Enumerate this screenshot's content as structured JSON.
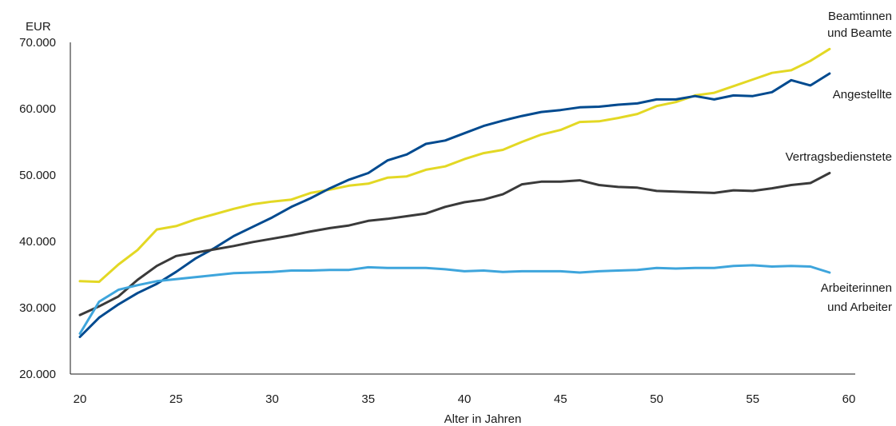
{
  "chart_data": {
    "type": "line",
    "xlabel": "Alter in Jahren",
    "ylabel": "EUR",
    "xlim": [
      20,
      60
    ],
    "ylim": [
      20000,
      70000
    ],
    "x_ticks": [
      "20",
      "25",
      "30",
      "35",
      "40",
      "45",
      "50",
      "55",
      "60"
    ],
    "y_ticks": [
      "20.000",
      "30.000",
      "40.000",
      "50.000",
      "60.000",
      "70.000"
    ],
    "grid": false,
    "x": [
      20,
      21,
      22,
      23,
      24,
      25,
      26,
      27,
      28,
      29,
      30,
      31,
      32,
      33,
      34,
      35,
      36,
      37,
      38,
      39,
      40,
      41,
      42,
      43,
      44,
      45,
      46,
      47,
      48,
      49,
      50,
      51,
      52,
      53,
      54,
      55,
      56,
      57,
      58,
      59
    ],
    "series": [
      {
        "name": "Beamtinnen und Beamte",
        "label_lines": [
          "Beamtinnen",
          "und Beamte"
        ],
        "color": "#e3d824",
        "values": [
          34000,
          33900,
          36500,
          38700,
          41800,
          42300,
          43300,
          44100,
          44900,
          45600,
          46000,
          46300,
          47300,
          47800,
          48400,
          48700,
          49600,
          49800,
          50800,
          51300,
          52400,
          53300,
          53800,
          55000,
          56100,
          56800,
          58000,
          58100,
          58600,
          59200,
          60400,
          61000,
          62000,
          62400,
          63400,
          64400,
          65400,
          65800,
          67200,
          69000
        ]
      },
      {
        "name": "Angestellte",
        "label_lines": [
          "Angestellte"
        ],
        "color": "#004a8f",
        "values": [
          25600,
          28500,
          30500,
          32200,
          33600,
          35400,
          37400,
          39000,
          40800,
          42200,
          43600,
          45200,
          46500,
          48000,
          49300,
          50300,
          52200,
          53100,
          54700,
          55200,
          56300,
          57400,
          58200,
          58900,
          59500,
          59800,
          60200,
          60300,
          60600,
          60800,
          61400,
          61400,
          61900,
          61400,
          62000,
          61900,
          62500,
          64300,
          63500,
          65300
        ]
      },
      {
        "name": "Vertragsbedienstete",
        "label_lines": [
          "Vertragsbedienstete"
        ],
        "color": "#3a3a3a",
        "values": [
          28900,
          30200,
          31700,
          34200,
          36300,
          37800,
          38300,
          38800,
          39300,
          39900,
          40400,
          40900,
          41500,
          42000,
          42400,
          43100,
          43400,
          43800,
          44200,
          45200,
          45900,
          46300,
          47100,
          48600,
          49000,
          49000,
          49200,
          48500,
          48200,
          48100,
          47600,
          47500,
          47400,
          47300,
          47700,
          47600,
          48000,
          48500,
          48800,
          50300
        ]
      },
      {
        "name": "Arbeiterinnen und Arbeiter",
        "label_lines": [
          "Arbeiterinnen",
          "und Arbeiter"
        ],
        "color": "#3ea5dc",
        "values": [
          26100,
          30900,
          32700,
          33400,
          34000,
          34300,
          34600,
          34900,
          35200,
          35300,
          35400,
          35600,
          35600,
          35700,
          35700,
          36100,
          36000,
          36000,
          36000,
          35800,
          35500,
          35600,
          35400,
          35500,
          35500,
          35500,
          35300,
          35500,
          35600,
          35700,
          36000,
          35900,
          36000,
          36000,
          36300,
          36400,
          36200,
          36300,
          36200,
          35300
        ]
      }
    ]
  }
}
